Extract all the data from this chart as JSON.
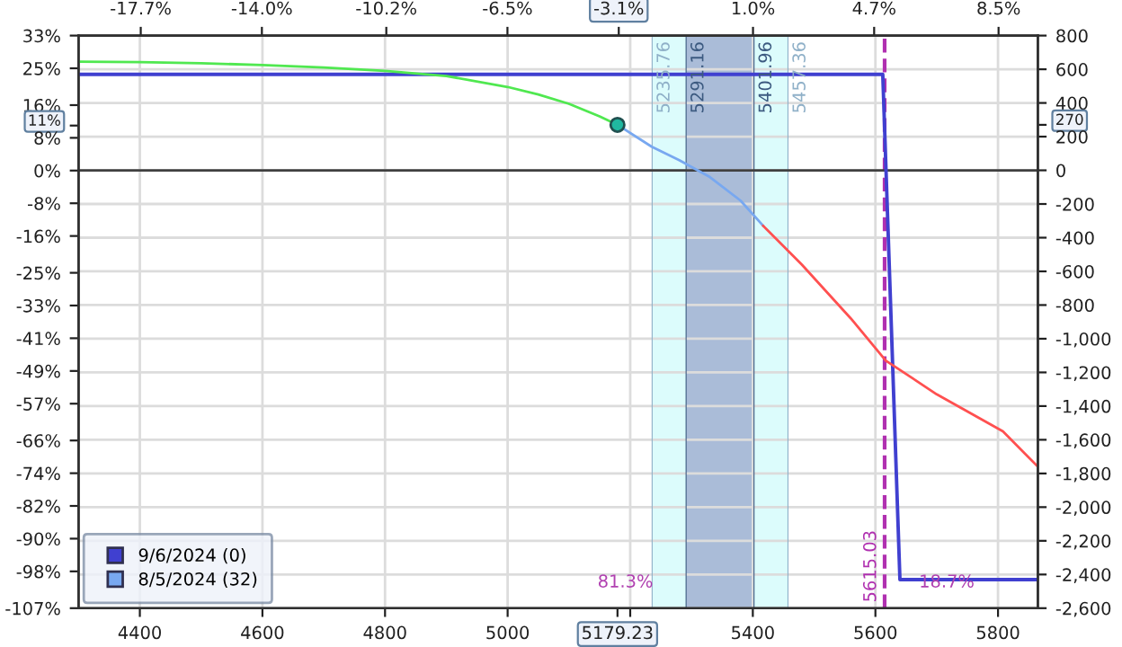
{
  "chart_data": {
    "type": "line",
    "series": [
      {
        "name": "9/6/2024 (0)",
        "color": "#4040d0",
        "x": [
          4300,
          5612,
          5640,
          5865
        ],
        "values": [
          570,
          570,
          -2430,
          -2430
        ]
      },
      {
        "color": "#50e850",
        "x": [
          4300,
          4400,
          4500,
          4600,
          4700,
          4800,
          4900,
          5000,
          5050,
          5100,
          5150,
          5179.23
        ],
        "values": [
          645,
          642,
          636,
          625,
          610,
          590,
          560,
          495,
          450,
          395,
          320,
          270
        ]
      },
      {
        "name": "8/5/2024 (32)",
        "color": "#78a8f0",
        "x": [
          5179.23,
          5235,
          5280,
          5330,
          5380,
          5417
        ],
        "values": [
          270,
          140,
          60,
          -40,
          -180,
          -330
        ]
      },
      {
        "color": "#ff5050",
        "x": [
          5417,
          5480,
          5560,
          5617,
          5700,
          5808,
          5865
        ],
        "values": [
          -330,
          -560,
          -880,
          -1130,
          -1330,
          -1550,
          -1760
        ]
      },
      {
        "type": "scatter",
        "marker": "circle",
        "color": "#20b8a0",
        "x": [
          5179.23
        ],
        "values": [
          270
        ]
      }
    ],
    "xlim": [
      4300,
      5865
    ],
    "xticks": [
      4400,
      4600,
      4800,
      5000,
      {
        "value": 5179.23,
        "label": "5179.23"
      },
      {
        "value": 5200,
        "label": null
      },
      5400,
      5600,
      5800
    ],
    "x2lim": [
      -19.6,
      9.7
    ],
    "x2ticks": [
      {
        "value": -17.7,
        "label": "-17.7%"
      },
      {
        "value": -14.0,
        "label": "-14.0%"
      },
      {
        "value": -10.2,
        "label": "-10.2%"
      },
      {
        "value": -6.5,
        "label": "-6.5%"
      },
      {
        "value": -3.1,
        "label": "-3.1%"
      },
      {
        "value": 1.0,
        "label": "1.0%"
      },
      {
        "value": 4.7,
        "label": "4.7%"
      },
      {
        "value": 8.5,
        "label": "8.5%"
      }
    ],
    "ylim": [
      -2600,
      800
    ],
    "yticks": [
      800,
      600,
      400,
      {
        "value": 270,
        "label": "270"
      },
      200,
      0,
      -200,
      -400,
      -600,
      -800,
      {
        "value": -1000,
        "label": "-1,000"
      },
      {
        "value": -1200,
        "label": "-1,200"
      },
      {
        "value": -1400,
        "label": "-1,400"
      },
      {
        "value": -1600,
        "label": "-1,600"
      },
      {
        "value": -1800,
        "label": "-1,800"
      },
      {
        "value": -2000,
        "label": "-2,000"
      },
      {
        "value": -2200,
        "label": "-2,200"
      },
      {
        "value": -2400,
        "label": "-2,400"
      },
      {
        "value": -2600,
        "label": "-2,600"
      }
    ],
    "y2lim": [
      -107,
      33
    ],
    "y2ticks": [
      {
        "value": 33,
        "label": "33%"
      },
      {
        "value": 25,
        "label": "25%"
      },
      {
        "value": 16,
        "label": "16%"
      },
      {
        "value": 11,
        "label": "11%"
      },
      {
        "value": 8,
        "label": "8%"
      },
      {
        "value": 0,
        "label": "0%"
      },
      {
        "value": -8,
        "label": "-8%"
      },
      {
        "value": -16,
        "label": "-16%"
      },
      {
        "value": -25,
        "label": "-25%"
      },
      {
        "value": -33,
        "label": "-33%"
      },
      {
        "value": -41,
        "label": "-41%"
      },
      {
        "value": -49,
        "label": "-49%"
      },
      {
        "value": -57,
        "label": "-57%"
      },
      {
        "value": -66,
        "label": "-66%"
      },
      {
        "value": -74,
        "label": "-74%"
      },
      {
        "value": -82,
        "label": "-82%"
      },
      {
        "value": -90,
        "label": "-90%"
      },
      {
        "value": -98,
        "label": "-98%"
      },
      {
        "value": -107,
        "label": "-107%"
      }
    ],
    "bands": [
      {
        "axis": "x",
        "from": 5235.76,
        "to": 5457.36,
        "color": "#dcfcfc"
      },
      {
        "axis": "x",
        "from": 5291.16,
        "to": 5401.96,
        "color": "#aabcd8"
      }
    ],
    "ref_lines": [
      {
        "axis": "x",
        "value": 5235.76,
        "label": "5235.76",
        "color": "#8fb0c8",
        "line_style": "solid"
      },
      {
        "axis": "x",
        "value": 5291.16,
        "label": "5291.16",
        "color": "#3c5a80",
        "line_style": "solid"
      },
      {
        "axis": "x",
        "value": 5401.96,
        "label": "5401.96",
        "color": "#3c5a80",
        "line_style": "solid"
      },
      {
        "axis": "x",
        "value": 5457.36,
        "label": "5457.36",
        "color": "#8fb0c8",
        "line_style": "solid"
      },
      {
        "axis": "x",
        "value": 5615.03,
        "label": "5615.03",
        "color": "#b030b0",
        "line_style": "dashed"
      },
      {
        "axis": "y",
        "value": 0,
        "color": "#404040",
        "line_style": "solid"
      }
    ],
    "annotations": [
      "81.3%",
      "18.7%"
    ],
    "grid": true,
    "legend": "bottom left",
    "marker": "none",
    "line_style": "solid"
  }
}
